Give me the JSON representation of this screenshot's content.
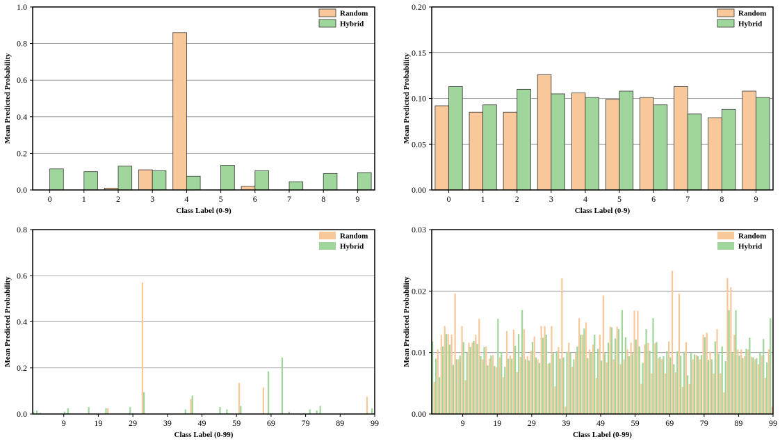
{
  "colors": {
    "random": "#f9c89a",
    "hybrid": "#9fd69b",
    "edge": "#333333",
    "grid": "#8a8a8a"
  },
  "chart_data": [
    {
      "type": "bar",
      "xlabel": "Class Label (0-9)",
      "ylabel": "Mean Predicted Probability",
      "ylim": [
        0,
        1.0
      ],
      "yticks": [
        "0.0",
        "0.2",
        "0.4",
        "0.6",
        "0.8",
        "1.0"
      ],
      "grid": true,
      "legend": "top-right",
      "categories": [
        "0",
        "1",
        "2",
        "3",
        "4",
        "5",
        "6",
        "7",
        "8",
        "9"
      ],
      "series": [
        {
          "name": "Random",
          "values": [
            0.0,
            0.0,
            0.01,
            0.11,
            0.86,
            0.0,
            0.02,
            0.0,
            0.0,
            0.0
          ]
        },
        {
          "name": "Hybrid",
          "values": [
            0.115,
            0.1,
            0.13,
            0.105,
            0.075,
            0.135,
            0.105,
            0.045,
            0.09,
            0.095
          ]
        }
      ]
    },
    {
      "type": "bar",
      "xlabel": "Class Label (0-9)",
      "ylabel": "Mean Predicted Probability",
      "ylim": [
        0,
        0.2
      ],
      "yticks": [
        "0.00",
        "0.05",
        "0.10",
        "0.15",
        "0.20"
      ],
      "grid": true,
      "legend": "top-right",
      "categories": [
        "0",
        "1",
        "2",
        "3",
        "4",
        "5",
        "6",
        "7",
        "8",
        "9"
      ],
      "series": [
        {
          "name": "Random",
          "values": [
            0.092,
            0.085,
            0.085,
            0.126,
            0.106,
            0.099,
            0.101,
            0.113,
            0.079,
            0.108
          ]
        },
        {
          "name": "Hybrid",
          "values": [
            0.113,
            0.093,
            0.11,
            0.105,
            0.101,
            0.108,
            0.093,
            0.083,
            0.088,
            0.101
          ]
        }
      ]
    },
    {
      "type": "bar",
      "xlabel": "Class Label (0-99)",
      "ylabel": "Mean Predicted Probability",
      "ylim": [
        0,
        0.8
      ],
      "yticks": [
        "0.0",
        "0.2",
        "0.4",
        "0.6",
        "0.8"
      ],
      "xticks": [
        "9",
        "19",
        "29",
        "39",
        "49",
        "59",
        "69",
        "79",
        "89",
        "99"
      ],
      "grid": true,
      "legend": "top-right",
      "n_classes": 100,
      "series": [
        {
          "name": "Random",
          "values": [
            0,
            0,
            0,
            0,
            0,
            0,
            0,
            0,
            0,
            0,
            0,
            0,
            0,
            0,
            0,
            0,
            0,
            0,
            0,
            0,
            0,
            0,
            0.025,
            0,
            0,
            0,
            0,
            0,
            0,
            0,
            0,
            0,
            0.57,
            0,
            0,
            0,
            0,
            0,
            0,
            0,
            0,
            0,
            0,
            0,
            0,
            0,
            0.065,
            0,
            0,
            0,
            0,
            0,
            0,
            0,
            0,
            0,
            0,
            0,
            0,
            0,
            0.135,
            0,
            0,
            0,
            0,
            0,
            0,
            0.115,
            0,
            0,
            0,
            0,
            0,
            0,
            0,
            0,
            0,
            0,
            0,
            0,
            0,
            0,
            0,
            0,
            0,
            0,
            0,
            0,
            0,
            0,
            0,
            0,
            0,
            0,
            0,
            0,
            0,
            0.075,
            0,
            0,
            0,
            0
          ]
        },
        {
          "name": "Hybrid",
          "values": [
            0.01,
            0.015,
            0.005,
            0,
            0,
            0,
            0,
            0,
            0,
            0.01,
            0.025,
            0,
            0,
            0,
            0,
            0,
            0.03,
            0,
            0,
            0,
            0,
            0.025,
            0,
            0,
            0,
            0,
            0,
            0,
            0.03,
            0,
            0,
            0,
            0.095,
            0,
            0,
            0,
            0,
            0,
            0,
            0,
            0,
            0,
            0,
            0,
            0.02,
            0,
            0.08,
            0,
            0,
            0,
            0,
            0,
            0,
            0,
            0.03,
            0,
            0.02,
            0,
            0,
            0,
            0.035,
            0,
            0,
            0,
            0,
            0,
            0,
            0,
            0.185,
            0,
            0,
            0,
            0.245,
            0,
            0.01,
            0,
            0,
            0,
            0,
            0,
            0.02,
            0,
            0.015,
            0.035,
            0,
            0,
            0,
            0,
            0,
            0,
            0,
            0,
            0,
            0,
            0,
            0,
            0,
            0,
            0.025,
            0,
            0
          ]
        }
      ]
    },
    {
      "type": "bar",
      "xlabel": "Class Label (0-99)",
      "ylabel": "Mean Predicted Probability",
      "ylim": [
        0,
        0.03
      ],
      "yticks": [
        "0.00",
        "0.01",
        "0.02",
        "0.03"
      ],
      "xticks": [
        "9",
        "19",
        "29",
        "39",
        "49",
        "59",
        "69",
        "79",
        "89",
        "99"
      ],
      "grid": true,
      "legend": "top-right",
      "n_classes": 100,
      "series": [
        {
          "name": "Random",
          "values": [
            0.0168,
            0.0052,
            0.0105,
            0.0129,
            0.0143,
            0.013,
            0.0129,
            0.0196,
            0.0089,
            0.0143,
            0.0055,
            0.0116,
            0.0116,
            0.0129,
            0.0155,
            0.0089,
            0.011,
            0.009,
            0.0096,
            0.0076,
            0.0092,
            0.006,
            0.0135,
            0.0095,
            0.0137,
            0.0068,
            0.0093,
            0.0138,
            0.0094,
            0.0103,
            0.0126,
            0.0089,
            0.0143,
            0.0143,
            0.0082,
            0.0143,
            0.0045,
            0.0109,
            0.0221,
            0.0012,
            0.0116,
            0.0077,
            0.0099,
            0.0156,
            0.0129,
            0.0149,
            0.0105,
            0.0113,
            0.0059,
            0.0129,
            0.0193,
            0.0084,
            0.0142,
            0.0089,
            0.0142,
            0.0081,
            0.0089,
            0.0105,
            0.0116,
            0.0168,
            0.0168,
            0.0049,
            0.0113,
            0.0116,
            0.0066,
            0.0115,
            0.0091,
            0.0089,
            0.0066,
            0.0118,
            0.0233,
            0.0068,
            0.0196,
            0.0044,
            0.0117,
            0.0049,
            0.0089,
            0.0096,
            0.0089,
            0.0129,
            0.0132,
            0.0101,
            0.0066,
            0.0138,
            0.0066,
            0.0035,
            0.0221,
            0.0206,
            0.0129,
            0.0105,
            0.0105,
            0.0094,
            0.0105,
            0.0093,
            0.0089,
            0.0081,
            0.0095,
            0.0059,
            0.0105,
            0.0012
          ]
        },
        {
          "name": "Hybrid",
          "values": [
            0.0118,
            0.009,
            0.006,
            0.011,
            0.013,
            0.0113,
            0.008,
            0.0089,
            0.0095,
            0.0117,
            0.01,
            0.0109,
            0.0119,
            0.0114,
            0.0094,
            0.0109,
            0.0079,
            0.0095,
            0.0078,
            0.0155,
            0.0101,
            0.0077,
            0.009,
            0.009,
            0.0111,
            0.013,
            0.0169,
            0.0089,
            0.0087,
            0.0117,
            0.0092,
            0.0083,
            0.0124,
            0.0129,
            0.0083,
            0.0099,
            0.0102,
            0.009,
            0.0092,
            0.0101,
            0.01,
            0.0089,
            0.011,
            0.0129,
            0.0139,
            0.0091,
            0.0099,
            0.0129,
            0.0106,
            0.0087,
            0.0099,
            0.0116,
            0.0141,
            0.0123,
            0.0138,
            0.0169,
            0.0125,
            0.0094,
            0.0099,
            0.0121,
            0.011,
            0.0083,
            0.0138,
            0.0103,
            0.0156,
            0.0117,
            0.0093,
            0.0094,
            0.0102,
            0.0092,
            0.0081,
            0.0102,
            0.0095,
            0.0101,
            0.0063,
            0.0099,
            0.0097,
            0.0094,
            0.0096,
            0.0125,
            0.0088,
            0.0089,
            0.0118,
            0.0098,
            0.011,
            0.0086,
            0.0169,
            0.0099,
            0.0169,
            0.0095,
            0.0091,
            0.0106,
            0.0124,
            0.0092,
            0.0091,
            0.0099,
            0.0122,
            0.0084,
            0.0156,
            0.0088
          ]
        }
      ]
    }
  ]
}
